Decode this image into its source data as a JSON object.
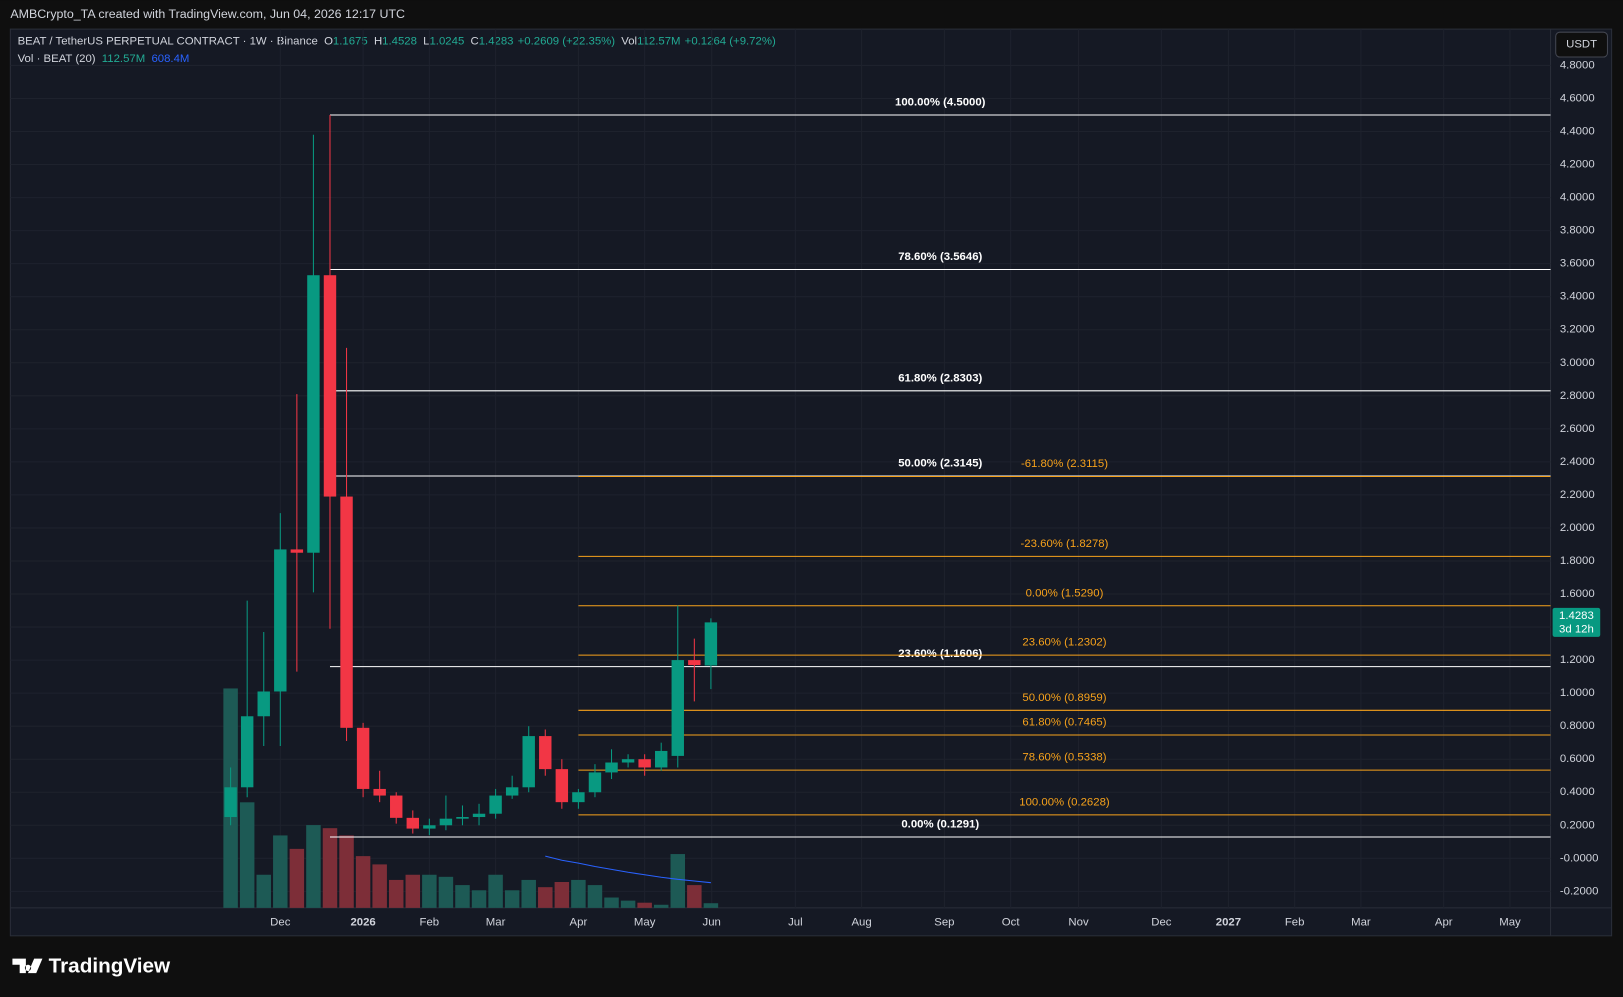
{
  "header": {
    "credit": "AMBCrypto_TA created with TradingView.com, Jun 04, 2026 12:17 UTC",
    "currency": "USDT"
  },
  "footer": {
    "brand": "TradingView"
  },
  "chart_data": {
    "type": "candlestick",
    "title": "BEAT / TetherUS PERPETUAL CONTRACT · 1W · Binance",
    "ohlc_legend": [
      {
        "label": "O",
        "value": "1.1675"
      },
      {
        "label": "H",
        "value": "1.4528"
      },
      {
        "label": "L",
        "value": "1.0245"
      },
      {
        "label": "C",
        "value": "1.4283"
      },
      {
        "label": "",
        "value": "+0.2609 (+22.35%)"
      },
      {
        "label": "Vol",
        "value": "112.57M"
      },
      {
        "label": "",
        "value": "+0.1264 (+9.72%)"
      }
    ],
    "volume_title": "Vol · BEAT (20)",
    "volume_legend": [
      {
        "value": "112.57M",
        "color": "#22ab94"
      },
      {
        "value": "608.4M",
        "color": "#2962ff"
      }
    ],
    "open": [
      0.25,
      0.43,
      0.86,
      1.01,
      1.87,
      1.85,
      3.53,
      2.19,
      0.79,
      0.42,
      0.38,
      0.245,
      0.18,
      0.2,
      0.24,
      0.25,
      0.27,
      0.38,
      0.43,
      0.74,
      0.54,
      0.34,
      0.4,
      0.52,
      0.58,
      0.6,
      0.55,
      0.62,
      1.2,
      1.1675
    ],
    "high": [
      0.55,
      1.56,
      1.37,
      2.09,
      2.81,
      4.38,
      4.5,
      3.09,
      0.82,
      0.53,
      0.4,
      0.29,
      0.24,
      0.38,
      0.32,
      0.33,
      0.42,
      0.5,
      0.8,
      0.78,
      0.6,
      0.42,
      0.57,
      0.66,
      0.63,
      0.63,
      0.7,
      1.53,
      1.33,
      1.4528
    ],
    "low": [
      0.2,
      0.37,
      0.68,
      0.68,
      1.13,
      1.61,
      1.39,
      0.71,
      0.37,
      0.34,
      0.21,
      0.15,
      0.14,
      0.17,
      0.2,
      0.2,
      0.24,
      0.36,
      0.4,
      0.5,
      0.3,
      0.3,
      0.37,
      0.48,
      0.55,
      0.5,
      0.53,
      0.55,
      0.95,
      1.0245
    ],
    "close": [
      0.43,
      0.86,
      1.01,
      1.87,
      1.85,
      3.53,
      2.19,
      0.79,
      0.42,
      0.38,
      0.245,
      0.18,
      0.2,
      0.24,
      0.25,
      0.27,
      0.38,
      0.43,
      0.74,
      0.54,
      0.34,
      0.4,
      0.52,
      0.58,
      0.6,
      0.55,
      0.65,
      1.2,
      1.17,
      1.4283
    ],
    "volume": [
      5300,
      2550,
      800,
      1750,
      1425,
      2000,
      1925,
      1750,
      1250,
      1050,
      675,
      800,
      800,
      750,
      550,
      425,
      800,
      425,
      675,
      500,
      625,
      675,
      550,
      250,
      175,
      125,
      75,
      1300,
      550,
      112.57
    ],
    "volume_ma": [
      null,
      null,
      null,
      null,
      null,
      null,
      null,
      null,
      null,
      null,
      null,
      null,
      null,
      null,
      null,
      null,
      null,
      null,
      null,
      1250,
      1150,
      1080,
      1000,
      930,
      860,
      800,
      740,
      690,
      650,
      608.4
    ],
    "up_color": "#089981",
    "down_color": "#f23645",
    "volume_up_color": "#1d5a55",
    "volume_down_color": "#7d2e38",
    "ma_color": "#2962ff",
    "grid": true,
    "ylim": [
      -0.3,
      5.02
    ],
    "yticks": [
      {
        "value": -0.2,
        "label": "-0.2000"
      },
      {
        "value": 0,
        "label": "-0.0000"
      },
      {
        "value": 0.2,
        "label": "0.2000"
      },
      {
        "value": 0.4,
        "label": "0.4000"
      },
      {
        "value": 0.6,
        "label": "0.6000"
      },
      {
        "value": 0.8,
        "label": "0.8000"
      },
      {
        "value": 1,
        "label": "1.0000"
      },
      {
        "value": 1.2,
        "label": "1.2000"
      },
      {
        "value": 1.4,
        "label": "1.4000"
      },
      {
        "value": 1.6,
        "label": "1.6000"
      },
      {
        "value": 1.8,
        "label": "1.8000"
      },
      {
        "value": 2,
        "label": "2.0000"
      },
      {
        "value": 2.2,
        "label": "2.2000"
      },
      {
        "value": 2.4,
        "label": "2.4000"
      },
      {
        "value": 2.6,
        "label": "2.6000"
      },
      {
        "value": 2.8,
        "label": "2.8000"
      },
      {
        "value": 3,
        "label": "3.0000"
      },
      {
        "value": 3.2,
        "label": "3.2000"
      },
      {
        "value": 3.4,
        "label": "3.4000"
      },
      {
        "value": 3.6,
        "label": "3.6000"
      },
      {
        "value": 3.8,
        "label": "3.8000"
      },
      {
        "value": 4,
        "label": "4.0000"
      },
      {
        "value": 4.2,
        "label": "4.2000"
      },
      {
        "value": 4.4,
        "label": "4.4000"
      },
      {
        "value": 4.6,
        "label": "4.6000"
      },
      {
        "value": 4.8,
        "label": "4.8000"
      }
    ],
    "xlim": [
      -13.3,
      79.7
    ],
    "xticks": [
      {
        "value": 3,
        "label": "Dec"
      },
      {
        "value": 8,
        "label": "2026"
      },
      {
        "value": 12,
        "label": "Feb"
      },
      {
        "value": 16,
        "label": "Mar"
      },
      {
        "value": 21,
        "label": "Apr"
      },
      {
        "value": 25,
        "label": "May"
      },
      {
        "value": 29.05,
        "label": "Jun"
      },
      {
        "value": 34.1,
        "label": "Jul"
      },
      {
        "value": 38.1,
        "label": "Aug"
      },
      {
        "value": 43.1,
        "label": "Sep"
      },
      {
        "value": 47.1,
        "label": "Oct"
      },
      {
        "value": 51.2,
        "label": "Nov"
      },
      {
        "value": 56.2,
        "label": "Dec"
      },
      {
        "value": 60.25,
        "label": "2027"
      },
      {
        "value": 64.25,
        "label": "Feb"
      },
      {
        "value": 68.25,
        "label": "Mar"
      },
      {
        "value": 73.25,
        "label": "Apr"
      },
      {
        "value": 77.25,
        "label": "May"
      }
    ],
    "fib_sets": [
      {
        "color": "#ffffff",
        "start": 6,
        "levels": [
          {
            "label": "100.00% (4.5000)",
            "value": 4.5
          },
          {
            "label": "78.60% (3.5646)",
            "value": 3.5646
          },
          {
            "label": "61.80% (2.8303)",
            "value": 2.8303
          },
          {
            "label": "50.00% (2.3145)",
            "value": 2.3145
          },
          {
            "label": "23.60% (1.1606)",
            "value": 1.1606
          },
          {
            "label": "0.00% (0.1291)",
            "value": 0.1291
          }
        ]
      },
      {
        "color": "#f7a21b",
        "start": 21,
        "levels": [
          {
            "label": "-61.80% (2.3115)",
            "value": 2.3115
          },
          {
            "label": "-23.60% (1.8278)",
            "value": 1.8278
          },
          {
            "label": "0.00% (1.5290)",
            "value": 1.529
          },
          {
            "label": "23.60% (1.2302)",
            "value": 1.2302
          },
          {
            "label": "50.00% (0.8959)",
            "value": 0.8959
          },
          {
            "label": "61.80% (0.7465)",
            "value": 0.7465
          },
          {
            "label": "78.60% (0.5338)",
            "value": 0.5338
          },
          {
            "label": "100.00% (0.2628)",
            "value": 0.2628
          }
        ]
      }
    ],
    "last_price": {
      "value": 1.4283,
      "label": "1.4283",
      "countdown": "3d 12h"
    }
  }
}
